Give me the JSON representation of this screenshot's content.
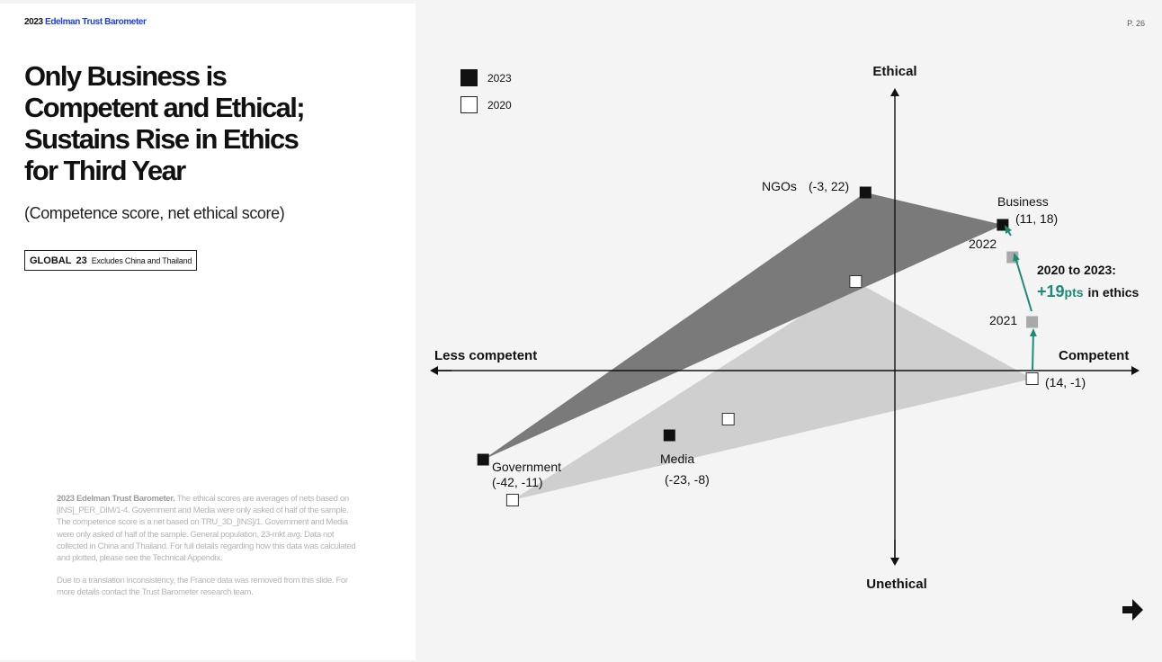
{
  "brand": {
    "year": "2023",
    "name": "Edelman Trust Barometer"
  },
  "page_number": "P. 26",
  "title_lines": [
    "Only Business is",
    "Competent and Ethical;",
    "Sustains Rise in Ethics",
    "for Third Year"
  ],
  "subtitle": "(Competence score, net ethical score)",
  "badge": {
    "region": "GLOBAL",
    "number": "23",
    "note": "Excludes China and Thailand"
  },
  "footnote": {
    "source": "2023 Edelman Trust Barometer.",
    "text": "The ethical scores are averages of nets based on [INS]_PER_DIM/1-4. Government and Media were only asked of half of the sample. The competence score is a net based on TRU_3D_[INS]/1. Government and Media were only asked of half of the sample. General population, 23-mkt avg. Data not collected in China and Thailand. For full details regarding how this data was calculated and plotted, please see the Technical Appendix.",
    "note2": "Due to a translation inconsistency, the France data was removed from this slide. For more details contact the Trust Barometer research team."
  },
  "colors": {
    "brand_blue": "#1f3ee0",
    "polygon_2023": "#7a7a7a",
    "polygon_2020": "#cfcfcf",
    "marker_2023": "#111111",
    "marker_2020": "#ffffff",
    "marker_interim": "#a9a9a9",
    "accent_teal": "#1e8a78"
  },
  "chart_data": {
    "type": "scatter",
    "xlabel_positive": "Competent",
    "xlabel_negative": "Less competent",
    "ylabel_positive": "Ethical",
    "ylabel_negative": "Unethical",
    "legend": [
      {
        "name": "2023",
        "style": "filled"
      },
      {
        "name": "2020",
        "style": "hollow"
      }
    ],
    "series": [
      {
        "name": "2023",
        "points": [
          {
            "label": "NGOs",
            "value_label": "(-3, 22)",
            "x": -3,
            "y": 22
          },
          {
            "label": "Business",
            "value_label": "(11, 18)",
            "x": 11,
            "y": 18
          },
          {
            "label": "Government",
            "value_label": "(-42, -11)",
            "x": -42,
            "y": -11
          },
          {
            "label": "Media",
            "value_label": "(-23, -8)",
            "x": -23,
            "y": -8
          }
        ]
      },
      {
        "name": "2020",
        "points": [
          {
            "label": "NGOs",
            "x": -4,
            "y": 11
          },
          {
            "label": "Business",
            "value_label": "(14, -1)",
            "x": 14,
            "y": -1
          },
          {
            "label": "Government",
            "x": -39,
            "y": -16
          },
          {
            "label": "Media",
            "x": -17,
            "y": -6
          }
        ]
      }
    ],
    "business_trend": [
      {
        "label": "2021",
        "x": 14,
        "y": 6
      },
      {
        "label": "2022",
        "x": 12,
        "y": 14
      }
    ],
    "annotation": {
      "line1": "2020 to 2023:",
      "value": "+19",
      "unit": "pts",
      "suffix": "in ethics"
    }
  }
}
